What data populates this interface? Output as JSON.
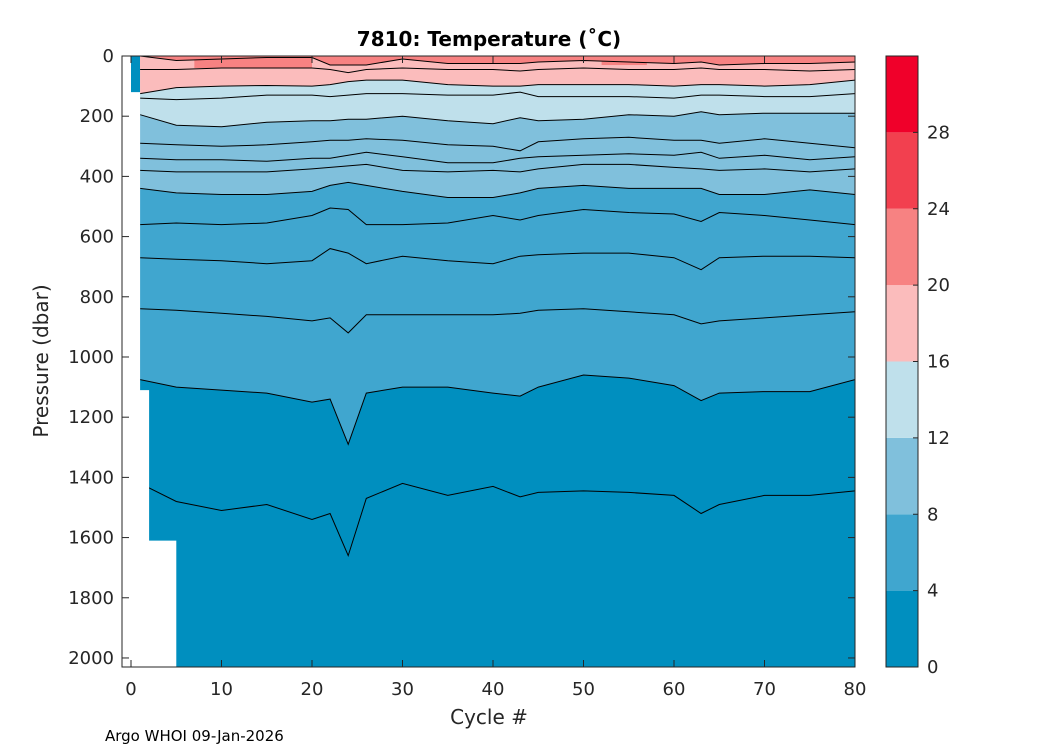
{
  "chart_data": {
    "type": "heatmap",
    "title": "7810:  Temperature (˚C)",
    "xlabel": "Cycle #",
    "ylabel": "Pressure (dbar)",
    "xlim": [
      0,
      80
    ],
    "ylim": [
      0,
      2030
    ],
    "y_reversed": true,
    "x_ticks": [
      0,
      10,
      20,
      30,
      40,
      50,
      60,
      70,
      80
    ],
    "y_ticks": [
      0,
      200,
      400,
      600,
      800,
      1000,
      1200,
      1400,
      1600,
      1800,
      2000
    ],
    "colorbar": {
      "limits": [
        0,
        32
      ],
      "ticks": [
        0,
        4,
        8,
        12,
        16,
        20,
        24,
        28
      ],
      "levels": [
        {
          "min": 0,
          "max": 4,
          "color": "#008fbf"
        },
        {
          "min": 4,
          "max": 8,
          "color": "#40a6cf"
        },
        {
          "min": 8,
          "max": 12,
          "color": "#80c0dc"
        },
        {
          "min": 12,
          "max": 16,
          "color": "#bfe0eb"
        },
        {
          "min": 16,
          "max": 20,
          "color": "#fbbcbc"
        },
        {
          "min": 20,
          "max": 24,
          "color": "#f78282"
        },
        {
          "min": 24,
          "max": 28,
          "color": "#f2404f"
        },
        {
          "min": 28,
          "max": 32,
          "color": "#f0002a"
        }
      ]
    },
    "isotherm_x": [
      1,
      5,
      10,
      15,
      20,
      22,
      24,
      26,
      30,
      35,
      40,
      43,
      45,
      50,
      55,
      60,
      63,
      65,
      70,
      75,
      80
    ],
    "isotherms": [
      {
        "temp": 20,
        "depth": [
          0,
          15,
          10,
          5,
          5,
          30,
          30,
          30,
          10,
          25,
          25,
          25,
          20,
          15,
          20,
          25,
          20,
          30,
          25,
          25,
          20
        ]
      },
      {
        "temp": 18,
        "depth": [
          45,
          45,
          40,
          40,
          40,
          45,
          55,
          45,
          40,
          45,
          45,
          50,
          45,
          40,
          45,
          45,
          40,
          45,
          45,
          50,
          45
        ]
      },
      {
        "temp": 16,
        "depth": [
          125,
          105,
          100,
          98,
          100,
          95,
          85,
          80,
          80,
          95,
          100,
          100,
          95,
          95,
          95,
          100,
          95,
          95,
          100,
          95,
          80
        ]
      },
      {
        "temp": 14,
        "depth": [
          140,
          145,
          140,
          130,
          130,
          135,
          130,
          125,
          125,
          130,
          130,
          120,
          135,
          135,
          135,
          140,
          130,
          130,
          135,
          135,
          125
        ]
      },
      {
        "temp": 12,
        "depth": [
          195,
          230,
          235,
          220,
          215,
          215,
          210,
          210,
          200,
          215,
          225,
          205,
          215,
          210,
          195,
          200,
          185,
          195,
          190,
          190,
          190
        ]
      },
      {
        "temp": 11,
        "depth": [
          290,
          295,
          300,
          295,
          285,
          280,
          280,
          275,
          280,
          295,
          300,
          315,
          285,
          275,
          270,
          280,
          280,
          290,
          275,
          290,
          305
        ]
      },
      {
        "temp": 10,
        "depth": [
          340,
          345,
          345,
          350,
          340,
          340,
          330,
          320,
          335,
          355,
          355,
          340,
          335,
          330,
          325,
          330,
          320,
          340,
          330,
          345,
          335
        ]
      },
      {
        "temp": 9,
        "depth": [
          380,
          385,
          385,
          385,
          375,
          370,
          365,
          360,
          380,
          385,
          380,
          385,
          375,
          360,
          360,
          370,
          375,
          380,
          375,
          385,
          375
        ]
      },
      {
        "temp": 8,
        "depth": [
          440,
          455,
          460,
          460,
          450,
          430,
          420,
          430,
          450,
          470,
          470,
          455,
          440,
          430,
          440,
          440,
          440,
          460,
          460,
          445,
          460
        ]
      },
      {
        "temp": 7,
        "depth": [
          560,
          555,
          560,
          555,
          530,
          505,
          510,
          560,
          560,
          555,
          530,
          545,
          530,
          510,
          520,
          525,
          550,
          520,
          530,
          545,
          560
        ]
      },
      {
        "temp": 6,
        "depth": [
          670,
          675,
          680,
          690,
          680,
          640,
          655,
          690,
          665,
          680,
          690,
          665,
          660,
          655,
          655,
          670,
          710,
          670,
          665,
          665,
          670
        ]
      },
      {
        "temp": 5,
        "depth": [
          840,
          845,
          855,
          865,
          880,
          870,
          920,
          860,
          860,
          860,
          860,
          855,
          845,
          840,
          850,
          860,
          890,
          880,
          870,
          860,
          850
        ]
      },
      {
        "temp": 4,
        "depth": [
          1075,
          1100,
          1110,
          1120,
          1150,
          1140,
          1290,
          1120,
          1100,
          1100,
          1120,
          1130,
          1100,
          1060,
          1070,
          1095,
          1145,
          1120,
          1115,
          1115,
          1075
        ]
      },
      {
        "temp": 3,
        "depth": [
          1420,
          1480,
          1510,
          1490,
          1540,
          1520,
          1660,
          1470,
          1420,
          1460,
          1430,
          1465,
          1450,
          1445,
          1450,
          1460,
          1520,
          1490,
          1460,
          1460,
          1445
        ]
      }
    ],
    "data_bottom": [
      [
        0,
        2030
      ],
      [
        1,
        2030
      ],
      [
        5,
        2030
      ],
      [
        80,
        2030
      ]
    ],
    "data_mask_left": [
      [
        0,
        120
      ],
      [
        1,
        120
      ],
      [
        1,
        1110
      ],
      [
        2,
        1110
      ],
      [
        2,
        1610
      ],
      [
        5,
        1610
      ],
      [
        5,
        2030
      ]
    ],
    "surface_features": "warm 20-24 patches near surface around cycles 7-20 and 50-57"
  },
  "footer": "Argo WHOI 09-Jan-2026"
}
